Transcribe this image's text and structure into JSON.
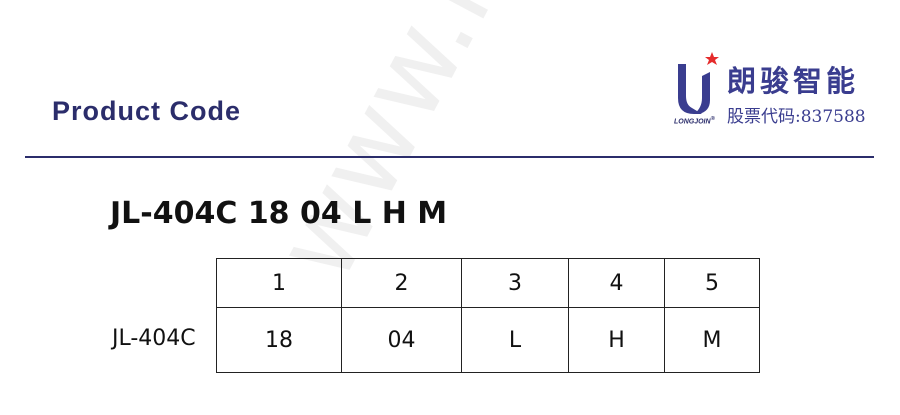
{
  "header": {
    "title": "Product Code"
  },
  "logo": {
    "brand_cn": "朗骏智能",
    "stock_code": "股票代码:837588",
    "brand_en": "LONGJOIN",
    "registered": "®",
    "colors": {
      "brand": "#3a3d8f",
      "star": "#e52b2b"
    }
  },
  "watermark": "www.lc",
  "product": {
    "code": "JL-404C 18 04 L H M"
  },
  "table": {
    "row_label": "JL-404C",
    "headers": [
      "1",
      "2",
      "3",
      "4",
      "5"
    ],
    "values": [
      "18",
      "04",
      "L",
      "H",
      "M"
    ]
  }
}
